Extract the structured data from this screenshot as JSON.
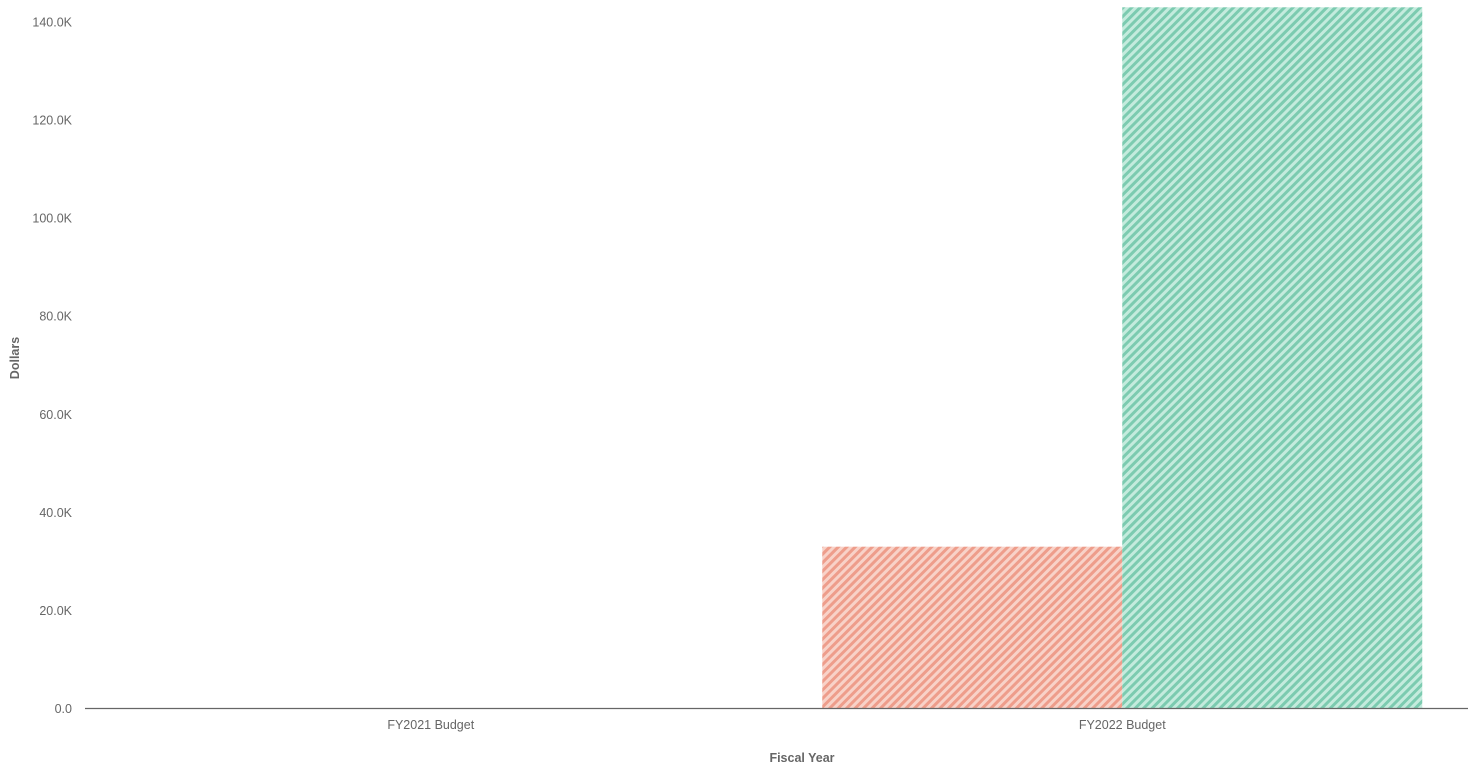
{
  "chart_data": {
    "type": "bar",
    "categories": [
      "FY2021 Budget",
      "FY2022 Budget"
    ],
    "series": [
      {
        "values": [
          0,
          33000
        ],
        "color": "#f0a493",
        "pattern": "diagonal-hatch"
      },
      {
        "values": [
          0,
          143000
        ],
        "color": "#86d0b7",
        "pattern": "diagonal-hatch"
      }
    ],
    "xlabel": "Fiscal Year",
    "ylabel": "Dollars",
    "ylim": [
      0,
      140000
    ],
    "yticks": [
      {
        "value": 0,
        "label": "0.0"
      },
      {
        "value": 20000,
        "label": "20.0K"
      },
      {
        "value": 40000,
        "label": "40.0K"
      },
      {
        "value": 60000,
        "label": "60.0K"
      },
      {
        "value": 80000,
        "label": "80.0K"
      },
      {
        "value": 100000,
        "label": "100.0K"
      },
      {
        "value": 120000,
        "label": "120.0K"
      },
      {
        "value": 140000,
        "label": "140.0K"
      }
    ],
    "grid": false,
    "legend": "none"
  }
}
